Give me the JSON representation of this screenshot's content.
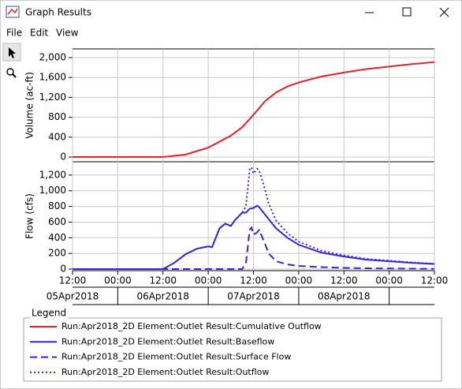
{
  "window": {
    "title": "Graph Results",
    "menu": [
      "File",
      "Edit",
      "View"
    ]
  },
  "chart_data": [
    {
      "type": "line",
      "ylabel": "Volume (ac-ft)",
      "x": [
        "05Apr2018 12:00",
        "06Apr2018 00:00",
        "06Apr2018 12:00",
        "06Apr2018 18:00",
        "07Apr2018 00:00",
        "07Apr2018 06:00",
        "07Apr2018 09:00",
        "07Apr2018 12:00",
        "07Apr2018 15:00",
        "07Apr2018 18:00",
        "07Apr2018 21:00",
        "08Apr2018 00:00",
        "08Apr2018 06:00",
        "08Apr2018 12:00",
        "08Apr2018 18:00",
        "09Apr2018 00:00",
        "09Apr2018 06:00",
        "09Apr2018 12:00"
      ],
      "series": [
        {
          "name": "Run:Apr2018_2D Element:Outlet Result:Cumulative Outflow",
          "color": "#e8202a",
          "line_style": "solid",
          "values": [
            0,
            0,
            0,
            50,
            190,
            430,
            600,
            850,
            1120,
            1300,
            1420,
            1500,
            1620,
            1700,
            1770,
            1820,
            1870,
            1910
          ]
        }
      ],
      "xlim": [
        "05Apr2018 12:00",
        "09Apr2018 12:00"
      ],
      "xticks": [
        "05Apr2018 12:00",
        "06Apr2018 00:00",
        "06Apr2018 12:00",
        "07Apr2018 00:00",
        "07Apr2018 12:00",
        "08Apr2018 00:00",
        "08Apr2018 12:00",
        "09Apr2018 00:00",
        "09Apr2018 12:00"
      ],
      "ylim": [
        -95,
        2175
      ],
      "yticks": [
        0,
        400,
        800,
        {
          "value": 1200,
          "label": "1,200"
        },
        {
          "value": 1600,
          "label": "1,600"
        },
        {
          "value": 2000,
          "label": "2,000"
        }
      ],
      "grid": true
    },
    {
      "type": "line",
      "ylabel": "Flow (cfs)",
      "x": [
        "05Apr2018 12:00",
        "05Apr2018 18:00",
        "06Apr2018 00:00",
        "06Apr2018 06:00",
        "06Apr2018 12:00",
        "06Apr2018 15:00",
        "06Apr2018 18:00",
        "06Apr2018 21:00",
        "07Apr2018 00:00",
        "07Apr2018 01:00",
        "07Apr2018 03:00",
        "07Apr2018 04:30",
        "07Apr2018 06:00",
        "07Apr2018 07:00",
        "07Apr2018 09:00",
        "07Apr2018 10:00",
        "07Apr2018 11:00",
        "07Apr2018 11:30",
        "07Apr2018 12:00",
        "07Apr2018 13:00",
        "07Apr2018 13:30",
        "07Apr2018 15:00",
        "07Apr2018 16:00",
        "07Apr2018 18:00",
        "07Apr2018 21:00",
        "08Apr2018 00:00",
        "08Apr2018 06:00",
        "08Apr2018 12:00",
        "08Apr2018 18:00",
        "09Apr2018 00:00",
        "09Apr2018 06:00",
        "09Apr2018 12:00"
      ],
      "series": [
        {
          "name": "Run:Apr2018_2D Element:Outlet Result:Baseflow",
          "color": "#3a22e0",
          "line_style": "solid",
          "values": [
            0,
            0,
            0,
            0,
            0,
            80,
            190,
            260,
            290,
            280,
            520,
            580,
            550,
            620,
            720,
            720,
            770,
            775,
            780,
            810,
            790,
            700,
            640,
            520,
            400,
            310,
            210,
            160,
            120,
            100,
            80,
            65
          ]
        },
        {
          "name": "Run:Apr2018_2D Element:Outlet Result:Surface Flow",
          "color": "#3a22e0",
          "line_style": "dashed",
          "values": [
            0,
            0,
            0,
            0,
            0,
            0,
            0,
            0,
            0,
            0,
            0,
            0,
            0,
            0,
            0,
            80,
            500,
            530,
            440,
            470,
            500,
            330,
            200,
            100,
            60,
            40,
            25,
            15,
            10,
            8,
            5,
            3
          ]
        },
        {
          "name": "Run:Apr2018_2D Element:Outlet Result:Outflow",
          "color": "#3a22e0",
          "line_style": "dotted",
          "values": [
            0,
            0,
            0,
            0,
            0,
            80,
            190,
            260,
            290,
            280,
            520,
            580,
            550,
            620,
            720,
            800,
            1270,
            1300,
            1220,
            1280,
            1260,
            1030,
            840,
            620,
            460,
            350,
            235,
            175,
            130,
            108,
            85,
            68
          ]
        }
      ],
      "xlim": [
        "05Apr2018 12:00",
        "09Apr2018 12:00"
      ],
      "xticks": [
        {
          "value": "05Apr2018 12:00",
          "label": "12:00"
        },
        {
          "value": "06Apr2018 00:00",
          "label": "00:00"
        },
        {
          "value": "06Apr2018 12:00",
          "label": "12:00"
        },
        {
          "value": "07Apr2018 00:00",
          "label": "00:00"
        },
        {
          "value": "07Apr2018 12:00",
          "label": "12:00"
        },
        {
          "value": "08Apr2018 00:00",
          "label": "00:00"
        },
        {
          "value": "08Apr2018 12:00",
          "label": "12:00"
        },
        {
          "value": "09Apr2018 00:00",
          "label": "00:00"
        },
        {
          "value": "09Apr2018 12:00",
          "label": "12:00"
        }
      ],
      "xdates": [
        {
          "value": "05Apr2018 12:00",
          "label": "05Apr2018"
        },
        {
          "value": "06Apr2018 12:00",
          "label": "06Apr2018"
        },
        {
          "value": "07Apr2018 12:00",
          "label": "07Apr2018"
        },
        {
          "value": "08Apr2018 12:00",
          "label": "08Apr2018"
        }
      ],
      "ylim": [
        -20,
        1370
      ],
      "yticks": [
        0,
        200,
        400,
        600,
        800,
        {
          "value": 1000,
          "label": "1,000"
        },
        {
          "value": 1200,
          "label": "1,200"
        }
      ],
      "grid": true
    }
  ],
  "legend": {
    "title": "Legend"
  }
}
